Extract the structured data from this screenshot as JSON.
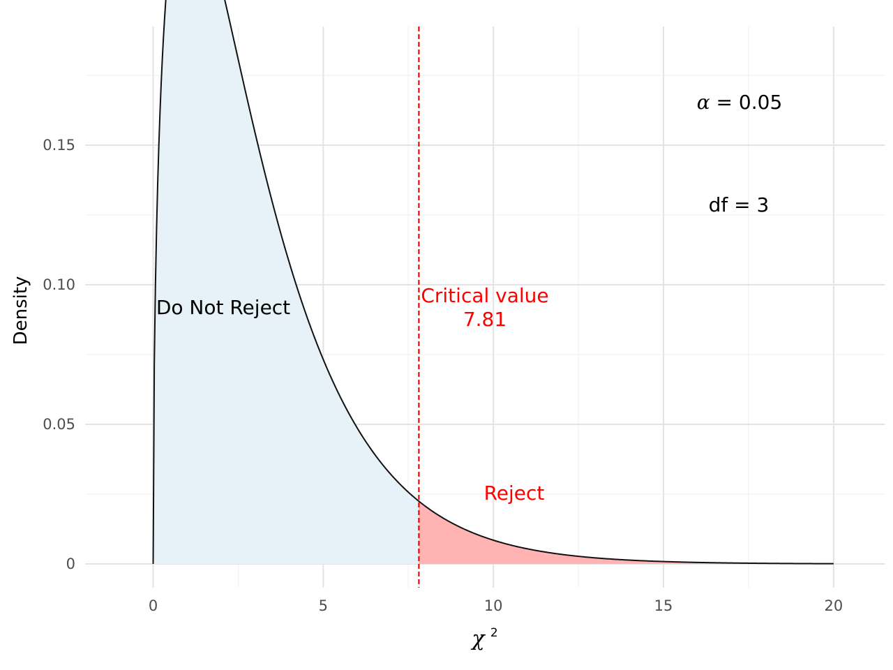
{
  "chart_data": {
    "type": "area",
    "distribution": "chi-squared",
    "df": 3,
    "x_range": [
      0,
      20
    ],
    "xlim": [
      -2,
      21.5
    ],
    "ylim": [
      -0.0085,
      0.1925
    ],
    "x_ticks": [
      0,
      5,
      10,
      15,
      20
    ],
    "x_tick_labels": [
      "0",
      "5",
      "10",
      "15",
      "20"
    ],
    "y_ticks": [
      0,
      0.05,
      0.1,
      0.15
    ],
    "y_tick_labels": [
      "0",
      "0.05",
      "0.10",
      "0.15"
    ],
    "xlabel": "χ",
    "xlabel_superscript": "2",
    "ylabel": "Density",
    "grid": true,
    "critical_value": 7.81,
    "regions": [
      {
        "label": "Do Not Reject",
        "from": 0,
        "to": 7.81,
        "fill": "#e6f2f8"
      },
      {
        "label": "Reject",
        "from": 7.81,
        "to": 20,
        "fill": "#ffb3b3"
      }
    ],
    "annotations": {
      "do_not_reject": "Do Not Reject",
      "reject": "Reject",
      "critical_title": "Critical value",
      "critical_value_text": "7.81",
      "alpha_symbol": "α",
      "alpha_value": "= 0.05",
      "df_text": "df = 3"
    },
    "colors": {
      "curve": "#111111",
      "critical_line": "#ff0000",
      "reject_text": "#ff0000",
      "grid_major": "#e3e3e3",
      "grid_minor": "#f2f2f2"
    }
  }
}
